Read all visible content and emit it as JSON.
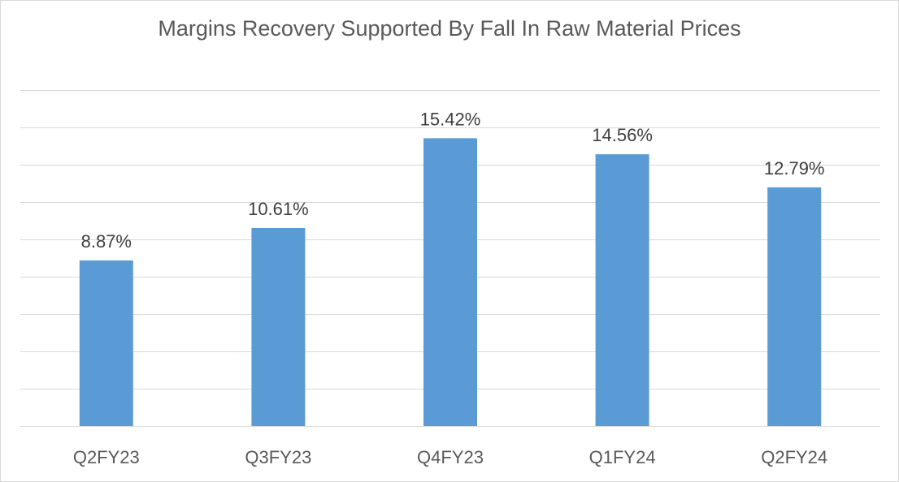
{
  "chart_data": {
    "type": "bar",
    "title": "Margins Recovery Supported By Fall In Raw Material Prices",
    "categories": [
      "Q2FY23",
      "Q3FY23",
      "Q4FY23",
      "Q1FY24",
      "Q2FY24"
    ],
    "values": [
      8.87,
      10.61,
      15.42,
      14.56,
      12.79
    ],
    "data_labels": [
      "8.87%",
      "10.61%",
      "15.42%",
      "14.56%",
      "12.79%"
    ],
    "ylim": [
      0,
      18
    ],
    "y_gridline_step": 2,
    "grid": true,
    "y_axis_labels_shown": false,
    "legend": "none",
    "bar_color": "#5b9bd5",
    "gridline_color": "#d9d9d9"
  }
}
